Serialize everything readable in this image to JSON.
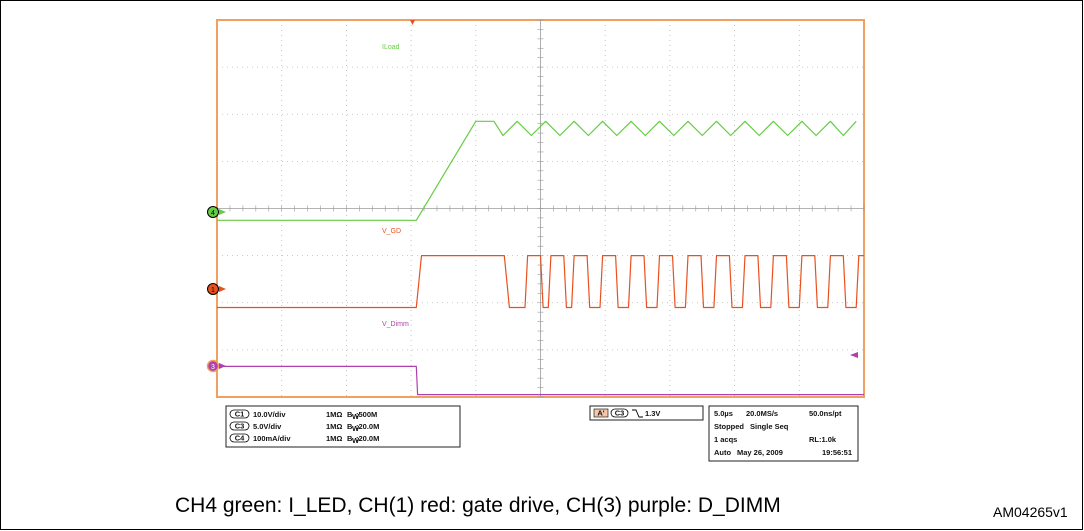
{
  "chart_data": {
    "type": "line",
    "title": "",
    "xlabel": "",
    "ylabel": "",
    "x_unit": "µs",
    "x_range": [
      0,
      25
    ],
    "grid": true,
    "series": [
      {
        "name": "ILoad",
        "channel": "4",
        "color": "#66cc44",
        "scale": "100mA/div",
        "baseline_div": -0.25,
        "points": [
          [
            0,
            -0.25
          ],
          [
            7.7,
            -0.25
          ],
          [
            10.0,
            1.85
          ],
          [
            10.7,
            1.85
          ],
          [
            11.05,
            1.55
          ],
          [
            11.6,
            1.85
          ],
          [
            12.15,
            1.55
          ],
          [
            12.7,
            1.85
          ],
          [
            13.25,
            1.55
          ],
          [
            13.8,
            1.85
          ],
          [
            14.35,
            1.55
          ],
          [
            14.9,
            1.85
          ],
          [
            15.45,
            1.55
          ],
          [
            16.0,
            1.85
          ],
          [
            16.55,
            1.55
          ],
          [
            17.1,
            1.85
          ],
          [
            17.65,
            1.55
          ],
          [
            18.2,
            1.85
          ],
          [
            18.75,
            1.55
          ],
          [
            19.3,
            1.85
          ],
          [
            19.85,
            1.55
          ],
          [
            20.4,
            1.85
          ],
          [
            20.95,
            1.55
          ],
          [
            21.5,
            1.85
          ],
          [
            22.05,
            1.55
          ],
          [
            22.6,
            1.85
          ],
          [
            23.15,
            1.55
          ],
          [
            23.7,
            1.85
          ],
          [
            24.2,
            1.55
          ],
          [
            24.7,
            1.85
          ]
        ]
      },
      {
        "name": "V_GD",
        "channel": "1",
        "color": "#e8501e",
        "scale": "10.0V/div",
        "baseline_div": -2.1,
        "points": [
          [
            0,
            -2.1
          ],
          [
            7.7,
            -2.1
          ],
          [
            7.9,
            -1.0
          ],
          [
            11.1,
            -1.0
          ],
          [
            11.3,
            -2.1
          ],
          [
            11.9,
            -2.1
          ],
          [
            12.0,
            -1.0
          ],
          [
            12.5,
            -1.0
          ],
          [
            12.6,
            -2.1
          ],
          [
            12.8,
            -2.1
          ],
          [
            12.9,
            -1.0
          ],
          [
            13.4,
            -1.0
          ],
          [
            13.5,
            -2.1
          ],
          [
            13.7,
            -2.1
          ],
          [
            13.8,
            -1.0
          ],
          [
            14.3,
            -1.0
          ],
          [
            14.4,
            -2.1
          ],
          [
            14.8,
            -2.1
          ],
          [
            14.9,
            -1.0
          ],
          [
            15.4,
            -1.0
          ],
          [
            15.5,
            -2.1
          ],
          [
            15.9,
            -2.1
          ],
          [
            16.0,
            -1.0
          ],
          [
            16.5,
            -1.0
          ],
          [
            16.6,
            -2.1
          ],
          [
            17.0,
            -2.1
          ],
          [
            17.1,
            -1.0
          ],
          [
            17.6,
            -1.0
          ],
          [
            17.7,
            -2.1
          ],
          [
            18.1,
            -2.1
          ],
          [
            18.2,
            -1.0
          ],
          [
            18.7,
            -1.0
          ],
          [
            18.8,
            -2.1
          ],
          [
            19.2,
            -2.1
          ],
          [
            19.3,
            -1.0
          ],
          [
            19.8,
            -1.0
          ],
          [
            19.9,
            -2.1
          ],
          [
            20.3,
            -2.1
          ],
          [
            20.4,
            -1.0
          ],
          [
            20.9,
            -1.0
          ],
          [
            21.0,
            -2.1
          ],
          [
            21.4,
            -2.1
          ],
          [
            21.5,
            -1.0
          ],
          [
            22.0,
            -1.0
          ],
          [
            22.1,
            -2.1
          ],
          [
            22.5,
            -2.1
          ],
          [
            22.6,
            -1.0
          ],
          [
            23.1,
            -1.0
          ],
          [
            23.2,
            -2.1
          ],
          [
            23.6,
            -2.1
          ],
          [
            23.7,
            -1.0
          ],
          [
            24.2,
            -1.0
          ],
          [
            24.3,
            -2.1
          ],
          [
            24.7,
            -2.1
          ],
          [
            24.8,
            -1.0
          ],
          [
            25,
            -1.0
          ]
        ]
      },
      {
        "name": "V_Dimm",
        "channel": "3",
        "color": "#b040b0",
        "scale": "5.0V/div",
        "baseline_div": -3.95,
        "points": [
          [
            0,
            -3.35
          ],
          [
            7.7,
            -3.35
          ],
          [
            7.75,
            -3.95
          ],
          [
            25,
            -3.95
          ]
        ]
      }
    ],
    "annotations": [
      "ILoad",
      "V_GD",
      "V_Dimm"
    ]
  },
  "scope": {
    "channels": [
      {
        "id": "C1",
        "scale": "10.0V/div",
        "imp": "1MΩ",
        "bw_label": "B",
        "bw_sub": "W",
        "bw_val": ":500M"
      },
      {
        "id": "C3",
        "scale": "5.0V/div",
        "imp": "1MΩ",
        "bw_label": "B",
        "bw_sub": "W",
        "bw_val": ":20.0M"
      },
      {
        "id": "C4",
        "scale": "100mA/div",
        "imp": "1MΩ",
        "bw_label": "B",
        "bw_sub": "W",
        "bw_val": ":20.0M"
      }
    ],
    "trigger": {
      "mode": "A'",
      "channel": "C3",
      "level": "1.3V"
    },
    "acq": {
      "timebase": "5.0µs",
      "rate": "20.0MS/s",
      "per_pt": "50.0ns/pt",
      "state": "Stopped",
      "seq": "Single Seq",
      "acqs": "1 acqs",
      "rl": "RL:1.0k",
      "mode": "Auto",
      "date": "May 26, 2009",
      "time": "19:56:51"
    },
    "markers": {
      "ch4": "4",
      "ch1": "1",
      "ch3": "3"
    }
  },
  "caption": "CH4 green: I_LED, CH(1) red: gate drive, CH(3) purple: D_DIMM",
  "doc_id": "AM04265v1"
}
